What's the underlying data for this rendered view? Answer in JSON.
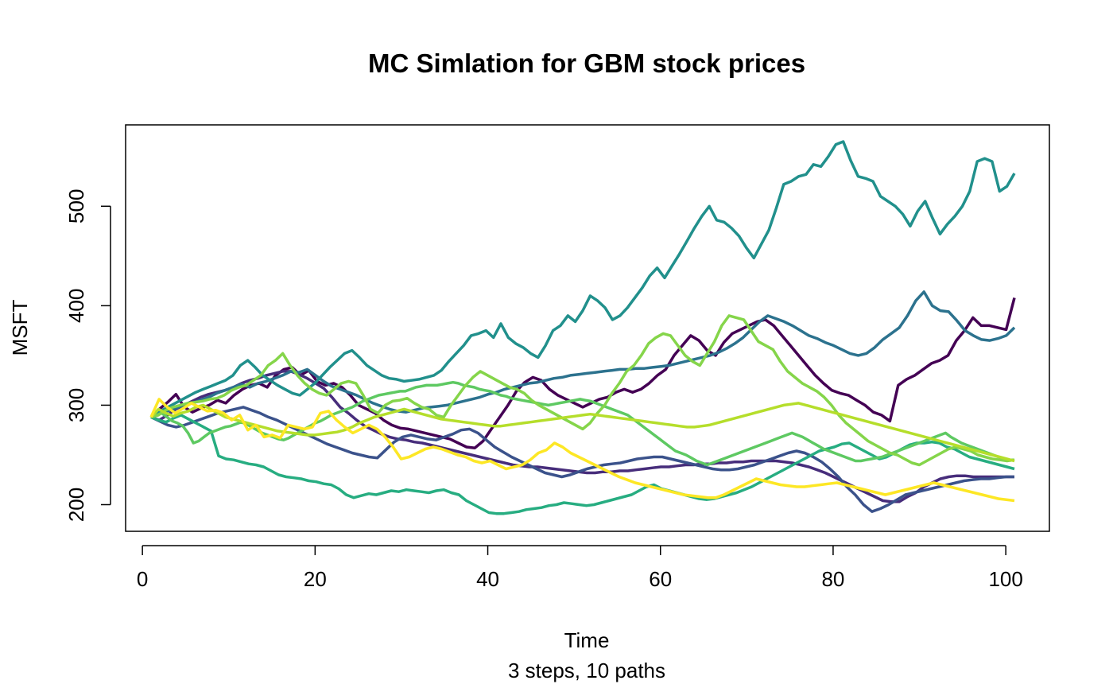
{
  "chart_data": {
    "type": "line",
    "title": "MC Simlation for GBM stock prices",
    "xlabel": "Time",
    "sublabel": "3 steps, 10 paths",
    "ylabel": "MSFT",
    "xlim": [
      1,
      101
    ],
    "ylim": [
      190,
      565
    ],
    "xticks": [
      0,
      20,
      40,
      60,
      80,
      100
    ],
    "yticks": [
      200,
      300,
      400,
      500
    ],
    "grid": false,
    "x_start": 1,
    "series": [
      {
        "color": "#440154",
        "values": [
          288,
          296,
          303,
          311,
          298,
          293,
          297,
          300,
          305,
          302,
          310,
          316,
          320,
          322,
          318,
          330,
          336,
          338,
          330,
          335,
          324,
          320,
          322,
          318,
          310,
          300,
          296,
          292,
          285,
          280,
          277,
          276,
          274,
          272,
          270,
          268,
          266,
          262,
          258,
          257,
          264,
          276,
          288,
          300,
          314,
          323,
          328,
          325,
          316,
          310,
          306,
          302,
          298,
          302,
          306,
          308,
          313,
          316,
          313,
          316,
          322,
          330,
          336,
          350,
          360,
          370,
          365,
          355,
          350,
          363,
          372,
          376,
          380,
          384,
          386,
          380,
          370,
          360,
          350,
          340,
          330,
          322,
          315,
          312,
          310,
          305,
          300,
          293,
          290,
          284,
          320,
          326,
          330,
          336,
          342,
          345,
          350,
          365,
          375,
          388,
          380,
          380,
          378,
          376,
          408
        ]
      },
      {
        "color": "#472D7B",
        "values": [
          288,
          285,
          290,
          296,
          300,
          304,
          308,
          311,
          313,
          315,
          318,
          322,
          325,
          327,
          330,
          332,
          334,
          334,
          331,
          327,
          322,
          317,
          308,
          298,
          292,
          285,
          279,
          275,
          271,
          268,
          266,
          265,
          263,
          262,
          260,
          258,
          256,
          254,
          252,
          250,
          248,
          246,
          244,
          242,
          240,
          239,
          238,
          238,
          237,
          236,
          235,
          234,
          233,
          232,
          232,
          233,
          233,
          234,
          234,
          235,
          236,
          237,
          238,
          238,
          239,
          240,
          240,
          241,
          241,
          242,
          242,
          243,
          243,
          244,
          244,
          244,
          244,
          243,
          242,
          240,
          238,
          235,
          232,
          228,
          224,
          220,
          216,
          212,
          208,
          204,
          203,
          203,
          208,
          212,
          218,
          222,
          226,
          228,
          229,
          229,
          228,
          228,
          228,
          228,
          228,
          228
        ]
      },
      {
        "color": "#3B528B",
        "values": [
          288,
          284,
          280,
          278,
          280,
          283,
          286,
          289,
          292,
          294,
          296,
          298,
          295,
          292,
          288,
          285,
          281,
          277,
          273,
          269,
          265,
          261,
          258,
          255,
          252,
          250,
          248,
          247,
          255,
          263,
          268,
          270,
          268,
          266,
          265,
          268,
          271,
          275,
          276,
          272,
          265,
          258,
          253,
          248,
          244,
          240,
          236,
          232,
          230,
          228,
          230,
          233,
          236,
          238,
          240,
          241,
          242,
          244,
          246,
          247,
          248,
          248,
          246,
          244,
          242,
          240,
          238,
          236,
          235,
          235,
          236,
          238,
          240,
          243,
          246,
          249,
          252,
          254,
          252,
          248,
          243,
          236,
          228,
          218,
          210,
          200,
          193,
          196,
          200,
          205,
          210,
          212,
          214,
          216,
          218,
          220,
          222,
          224,
          225,
          226,
          226,
          227,
          228,
          228
        ]
      },
      {
        "color": "#2C728E",
        "values": [
          288,
          292,
          294,
          297,
          300,
          302,
          305,
          308,
          312,
          315,
          318,
          321,
          318,
          322,
          324,
          327,
          330,
          334,
          333,
          336,
          330,
          324,
          319,
          316,
          313,
          310,
          306,
          302,
          299,
          296,
          294,
          293,
          295,
          297,
          298,
          299,
          300,
          302,
          304,
          306,
          308,
          311,
          313,
          316,
          318,
          320,
          322,
          323,
          325,
          327,
          328,
          330,
          331,
          332,
          333,
          334,
          335,
          336,
          336,
          337,
          337,
          338,
          339,
          340,
          342,
          344,
          346,
          348,
          350,
          353,
          357,
          362,
          368,
          376,
          384,
          390,
          387,
          384,
          380,
          375,
          370,
          367,
          363,
          360,
          356,
          352,
          350,
          352,
          358,
          366,
          372,
          378,
          390,
          405,
          414,
          400,
          395,
          394,
          385,
          375,
          370,
          366,
          365,
          367,
          370,
          378
        ]
      },
      {
        "color": "#21908C",
        "values": [
          288,
          293,
          297,
          301,
          305,
          309,
          313,
          316,
          319,
          322,
          325,
          330,
          340,
          345,
          338,
          330,
          325,
          320,
          316,
          312,
          310,
          316,
          322,
          330,
          338,
          345,
          352,
          355,
          348,
          340,
          335,
          330,
          327,
          326,
          324,
          325,
          326,
          328,
          330,
          335,
          344,
          352,
          360,
          370,
          372,
          375,
          368,
          382,
          368,
          362,
          358,
          352,
          348,
          360,
          375,
          380,
          390,
          384,
          395,
          410,
          405,
          398,
          386,
          390,
          398,
          408,
          418,
          430,
          438,
          428,
          440,
          452,
          465,
          478,
          490,
          500,
          486,
          484,
          478,
          470,
          458,
          448,
          462,
          476,
          498,
          522,
          525,
          530,
          532,
          542,
          540,
          550,
          562,
          565,
          546,
          530,
          528,
          525,
          510,
          505,
          500,
          492,
          480,
          495,
          505,
          488,
          472,
          482,
          490,
          500,
          515,
          545,
          548,
          545,
          515,
          520,
          533
        ]
      },
      {
        "color": "#27AD81",
        "values": [
          288,
          285,
          283,
          287,
          290,
          286,
          282,
          278,
          274,
          249,
          246,
          245,
          243,
          241,
          240,
          238,
          234,
          230,
          228,
          227,
          226,
          224,
          223,
          221,
          220,
          216,
          210,
          207,
          209,
          211,
          210,
          212,
          214,
          213,
          215,
          214,
          213,
          212,
          214,
          215,
          212,
          210,
          204,
          200,
          196,
          192,
          191,
          191,
          192,
          193,
          195,
          196,
          197,
          199,
          200,
          202,
          201,
          200,
          199,
          200,
          202,
          204,
          206,
          208,
          210,
          214,
          218,
          220,
          216,
          214,
          212,
          210,
          208,
          206,
          205,
          206,
          208,
          210,
          212,
          215,
          218,
          222,
          226,
          230,
          234,
          238,
          242,
          246,
          250,
          254,
          256,
          258,
          261,
          262,
          258,
          254,
          250,
          246,
          248,
          252,
          256,
          260,
          262,
          262,
          263,
          262,
          258,
          256,
          252,
          248,
          246,
          244,
          242,
          240,
          238,
          236
        ]
      },
      {
        "color": "#5EC962",
        "values": [
          288,
          290,
          292,
          288,
          284,
          282,
          279,
          272,
          262,
          264,
          268,
          272,
          274,
          276,
          278,
          279,
          281,
          283,
          281,
          278,
          275,
          272,
          270,
          268,
          266,
          265,
          267,
          270,
          273,
          276,
          279,
          282,
          284,
          287,
          290,
          292,
          294,
          296,
          298,
          301,
          304,
          306,
          308,
          310,
          311,
          312,
          313,
          314,
          314,
          316,
          318,
          319,
          320,
          320,
          320,
          321,
          322,
          323,
          322,
          320,
          319,
          318,
          316,
          315,
          314,
          312,
          310,
          309,
          307,
          306,
          305,
          304,
          303,
          302,
          301,
          300,
          301,
          302,
          303,
          304,
          305,
          306,
          305,
          304,
          302,
          300,
          298,
          296,
          294,
          292,
          290,
          286,
          282,
          278,
          274,
          270,
          266,
          262,
          258,
          254,
          252,
          250,
          247,
          244,
          242,
          240,
          242,
          244,
          246,
          248,
          250,
          252,
          254,
          256,
          258,
          260,
          262,
          264,
          266,
          268,
          270,
          272,
          270,
          268,
          265,
          262,
          259,
          256,
          254,
          252,
          250,
          248,
          246,
          244,
          244,
          245,
          246,
          247,
          248,
          250,
          252,
          254,
          256,
          258,
          260,
          262,
          264,
          266,
          268,
          270,
          272,
          268,
          265,
          262,
          260,
          258,
          256,
          254,
          252,
          250,
          248,
          246,
          245,
          245
        ]
      },
      {
        "color": "#85D54A",
        "values": [
          288,
          290,
          295,
          298,
          300,
          302,
          303,
          304,
          306,
          307,
          310,
          315,
          318,
          320,
          325,
          330,
          340,
          345,
          352,
          340,
          330,
          322,
          316,
          312,
          310,
          316,
          322,
          324,
          322,
          310,
          296,
          292,
          300,
          304,
          305,
          307,
          302,
          298,
          296,
          290,
          288,
          300,
          310,
          320,
          328,
          334,
          330,
          326,
          322,
          318,
          316,
          312,
          305,
          300,
          296,
          292,
          288,
          284,
          280,
          276,
          282,
          292,
          300,
          312,
          322,
          334,
          340,
          350,
          362,
          368,
          372,
          370,
          360,
          350,
          344,
          340,
          352,
          364,
          380,
          390,
          388,
          386,
          375,
          364,
          360,
          356,
          344,
          334,
          328,
          322,
          318,
          314,
          308,
          300,
          290,
          282,
          276,
          270,
          264,
          260,
          256,
          252,
          250,
          246,
          242,
          240,
          244,
          248,
          252,
          256,
          258,
          256,
          254,
          250,
          248,
          246,
          245,
          244,
          245
        ]
      },
      {
        "color": "#B5DE2B",
        "values": [
          288,
          296,
          292,
          289,
          292,
          294,
          298,
          300,
          296,
          292,
          288,
          286,
          284,
          282,
          280,
          278,
          276,
          274,
          273,
          272,
          271,
          270,
          270,
          271,
          272,
          273,
          275,
          278,
          282,
          285,
          288,
          290,
          292,
          294,
          296,
          294,
          292,
          290,
          288,
          286,
          285,
          284,
          283,
          282,
          281,
          280,
          279,
          279,
          280,
          281,
          282,
          283,
          284,
          285,
          286,
          287,
          288,
          289,
          290,
          291,
          290,
          289,
          288,
          287,
          286,
          285,
          284,
          283,
          282,
          281,
          280,
          279,
          278,
          278,
          279,
          280,
          282,
          284,
          286,
          288,
          290,
          292,
          294,
          296,
          298,
          300,
          301,
          302,
          300,
          298,
          296,
          294,
          292,
          290,
          288,
          286,
          284,
          282,
          280,
          278,
          276,
          274,
          272,
          270,
          268,
          266,
          264,
          262,
          260,
          258,
          256,
          254,
          252,
          250,
          248,
          246,
          244
        ]
      },
      {
        "color": "#FDE725",
        "values": [
          288,
          306,
          298,
          292,
          297,
          302,
          298,
          294,
          295,
          292,
          285,
          290,
          275,
          280,
          268,
          270,
          267,
          280,
          278,
          276,
          278,
          292,
          294,
          285,
          278,
          272,
          276,
          280,
          276,
          268,
          258,
          246,
          248,
          252,
          256,
          258,
          256,
          253,
          250,
          248,
          244,
          242,
          244,
          240,
          236,
          238,
          240,
          245,
          252,
          255,
          262,
          258,
          252,
          248,
          244,
          240,
          236,
          232,
          228,
          225,
          222,
          220,
          218,
          216,
          214,
          212,
          210,
          209,
          208,
          207,
          207,
          210,
          214,
          218,
          222,
          226,
          224,
          222,
          220,
          219,
          218,
          218,
          219,
          220,
          221,
          222,
          220,
          218,
          216,
          214,
          212,
          210,
          212,
          214,
          216,
          218,
          220,
          222,
          220,
          218,
          216,
          214,
          212,
          210,
          208,
          206,
          205,
          204
        ]
      }
    ]
  }
}
